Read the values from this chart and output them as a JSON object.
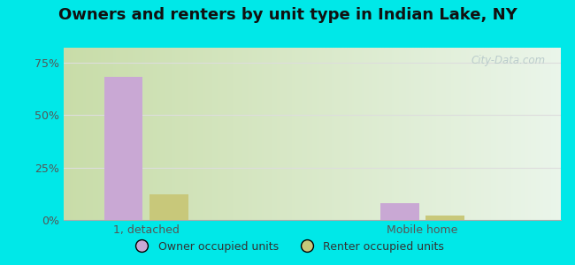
{
  "title": "Owners and renters by unit type in Indian Lake, NY",
  "categories": [
    "1, detached",
    "Mobile home"
  ],
  "owner_values": [
    68.0,
    8.0
  ],
  "renter_values": [
    12.0,
    2.0
  ],
  "owner_color": "#c9a8d4",
  "renter_color": "#c8c87a",
  "yticks": [
    0,
    25,
    50,
    75
  ],
  "ytick_labels": [
    "0%",
    "25%",
    "50%",
    "75%"
  ],
  "ylim": [
    0,
    82
  ],
  "background_outer": "#00e8e8",
  "watermark": "City-Data.com",
  "legend_owner": "Owner occupied units",
  "legend_renter": "Renter occupied units",
  "bar_width": 0.35,
  "group_positions": [
    0.75,
    3.25
  ],
  "xlim": [
    0,
    4.5
  ],
  "gradient_left": "#c8dca8",
  "gradient_right": "#eaf5ea",
  "gridline_color": "#dddddd",
  "tick_label_color": "#555555",
  "title_fontsize": 13,
  "axis_label_fontsize": 9
}
